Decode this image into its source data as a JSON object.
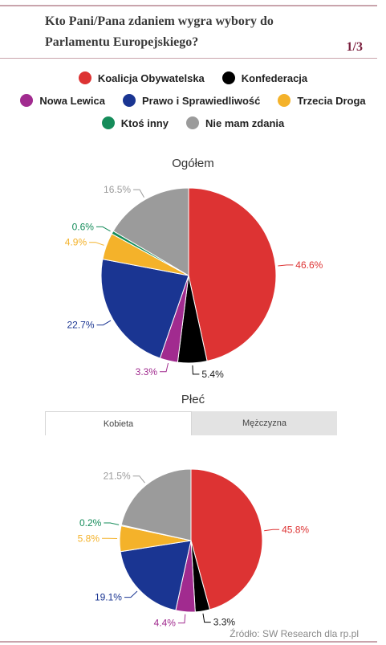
{
  "header": {
    "title": "Kto Pani/Pana zdaniem wygra wybory do Parlamentu Europejskiego?",
    "page_indicator": "1/3"
  },
  "legend": {
    "rows": [
      [
        {
          "label": "Koalicja Obywatelska",
          "color": "#dd3333"
        },
        {
          "label": "Konfederacja",
          "color": "#000000"
        }
      ],
      [
        {
          "label": "Nowa Lewica",
          "color": "#a12b8f"
        },
        {
          "label": "Prawo i Sprawiedliwość",
          "color": "#1a3592"
        },
        {
          "label": "Trzecia Droga",
          "color": "#f4b22a"
        }
      ],
      [
        {
          "label": "Ktoś inny",
          "color": "#158c5a"
        },
        {
          "label": "Nie mam zdania",
          "color": "#9b9b9b"
        }
      ]
    ]
  },
  "sections": {
    "overall_title": "Ogółem",
    "gender_title": "Płeć"
  },
  "tabs": [
    {
      "label": "Kobieta",
      "active": true
    },
    {
      "label": "Mężczyzna",
      "active": false
    }
  ],
  "chart_data": [
    {
      "type": "pie",
      "title": "Ogółem",
      "categories": [
        "Koalicja Obywatelska",
        "Konfederacja",
        "Nowa Lewica",
        "Prawo i Sprawiedliwość",
        "Trzecia Droga",
        "Ktoś inny",
        "Nie mam zdania"
      ],
      "values": [
        46.6,
        5.4,
        3.3,
        22.7,
        4.9,
        0.6,
        16.5
      ],
      "labels": [
        "46.6%",
        "5.4%",
        "3.3%",
        "22.7%",
        "4.9%",
        "0.6%",
        "16.5%"
      ],
      "colors": [
        "#dd3333",
        "#000000",
        "#a12b8f",
        "#1a3592",
        "#f4b22a",
        "#158c5a",
        "#9b9b9b"
      ]
    },
    {
      "type": "pie",
      "title": "Kobieta",
      "categories": [
        "Koalicja Obywatelska",
        "Konfederacja",
        "Nowa Lewica",
        "Prawo i Sprawiedliwość",
        "Trzecia Droga",
        "Ktoś inny",
        "Nie mam zdania"
      ],
      "values": [
        45.8,
        3.3,
        4.4,
        19.1,
        5.8,
        0.2,
        21.5
      ],
      "labels": [
        "45.8%",
        "3.3%",
        "4.4%",
        "19.1%",
        "5.8%",
        "0.2%",
        "21.5%"
      ],
      "colors": [
        "#dd3333",
        "#000000",
        "#a12b8f",
        "#1a3592",
        "#f4b22a",
        "#158c5a",
        "#9b9b9b"
      ]
    }
  ],
  "footer": {
    "source": "Źródło: SW Research dla rp.pl"
  }
}
